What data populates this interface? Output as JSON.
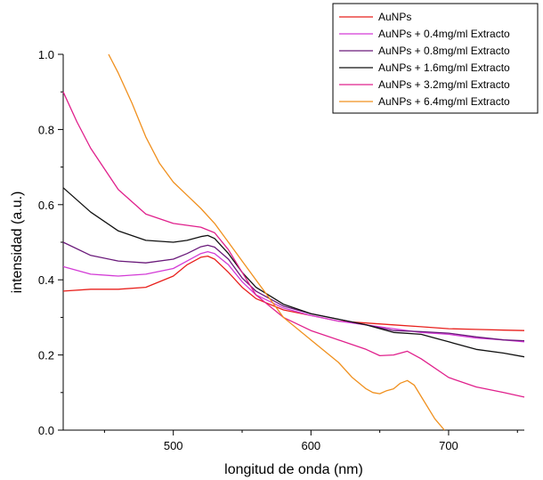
{
  "chart_data": {
    "type": "line",
    "title": "",
    "xlabel": "longitud de onda (nm)",
    "ylabel": "intensidad (a.u.)",
    "xlim": [
      420,
      755
    ],
    "ylim": [
      0.0,
      1.0
    ],
    "x_ticks": [
      500,
      600,
      700
    ],
    "x_tick_labels": [
      "500",
      "600",
      "700"
    ],
    "y_ticks": [
      0.0,
      0.2,
      0.4,
      0.6,
      0.8,
      1.0
    ],
    "y_tick_labels": [
      "0.0",
      "0.2",
      "0.4",
      "0.6",
      "0.8",
      "1.0"
    ],
    "grid": false,
    "legend_position": "top-right",
    "series": [
      {
        "name": "AuNPs",
        "color": "#e8201c",
        "x": [
          420,
          440,
          460,
          480,
          500,
          510,
          520,
          525,
          530,
          540,
          550,
          560,
          580,
          600,
          620,
          640,
          660,
          680,
          700,
          720,
          740,
          755
        ],
        "y": [
          0.37,
          0.375,
          0.375,
          0.38,
          0.41,
          0.44,
          0.46,
          0.463,
          0.455,
          0.42,
          0.38,
          0.35,
          0.32,
          0.305,
          0.29,
          0.285,
          0.28,
          0.275,
          0.27,
          0.268,
          0.266,
          0.265
        ]
      },
      {
        "name": "AuNPs + 0.4mg/ml Extracto",
        "color": "#d33bd6",
        "x": [
          420,
          440,
          460,
          480,
          500,
          510,
          520,
          525,
          530,
          540,
          550,
          560,
          580,
          600,
          620,
          640,
          660,
          680,
          700,
          720,
          740,
          755
        ],
        "y": [
          0.435,
          0.415,
          0.41,
          0.415,
          0.43,
          0.45,
          0.47,
          0.475,
          0.47,
          0.44,
          0.395,
          0.36,
          0.325,
          0.305,
          0.29,
          0.28,
          0.27,
          0.26,
          0.255,
          0.245,
          0.24,
          0.235
        ]
      },
      {
        "name": "AuNPs + 0.8mg/ml Extracto",
        "color": "#6a1a7a",
        "x": [
          420,
          440,
          460,
          480,
          500,
          510,
          520,
          525,
          530,
          540,
          550,
          560,
          580,
          600,
          620,
          640,
          660,
          680,
          700,
          720,
          740,
          755
        ],
        "y": [
          0.5,
          0.465,
          0.45,
          0.445,
          0.455,
          0.47,
          0.488,
          0.492,
          0.487,
          0.455,
          0.405,
          0.37,
          0.33,
          0.31,
          0.295,
          0.28,
          0.265,
          0.262,
          0.258,
          0.248,
          0.24,
          0.238
        ]
      },
      {
        "name": "AuNPs + 1.6mg/ml Extracto",
        "color": "#111111",
        "x": [
          420,
          440,
          460,
          480,
          500,
          510,
          520,
          525,
          530,
          540,
          550,
          560,
          580,
          600,
          620,
          640,
          660,
          680,
          700,
          720,
          740,
          755
        ],
        "y": [
          0.645,
          0.58,
          0.53,
          0.505,
          0.5,
          0.505,
          0.515,
          0.518,
          0.51,
          0.47,
          0.42,
          0.38,
          0.335,
          0.31,
          0.295,
          0.28,
          0.26,
          0.255,
          0.235,
          0.215,
          0.205,
          0.195
        ]
      },
      {
        "name": "AuNPs + 3.2mg/ml Extracto",
        "color": "#e0208c",
        "x": [
          420,
          430,
          440,
          460,
          480,
          500,
          520,
          530,
          540,
          550,
          560,
          580,
          600,
          620,
          640,
          650,
          660,
          670,
          680,
          700,
          720,
          740,
          755
        ],
        "y": [
          0.9,
          0.82,
          0.75,
          0.64,
          0.575,
          0.55,
          0.54,
          0.525,
          0.48,
          0.42,
          0.36,
          0.3,
          0.265,
          0.24,
          0.215,
          0.198,
          0.2,
          0.21,
          0.19,
          0.14,
          0.115,
          0.1,
          0.088
        ]
      },
      {
        "name": "AuNPs + 6.4mg/ml Extracto",
        "color": "#f0901e",
        "x": [
          453,
          460,
          470,
          480,
          490,
          500,
          510,
          520,
          530,
          540,
          550,
          560,
          570,
          580,
          600,
          620,
          630,
          640,
          645,
          650,
          655,
          660,
          665,
          670,
          675,
          680,
          690,
          697
        ],
        "y": [
          1.0,
          0.95,
          0.87,
          0.78,
          0.71,
          0.66,
          0.625,
          0.59,
          0.55,
          0.5,
          0.45,
          0.4,
          0.35,
          0.3,
          0.24,
          0.18,
          0.14,
          0.11,
          0.1,
          0.097,
          0.105,
          0.11,
          0.125,
          0.132,
          0.12,
          0.09,
          0.03,
          0.0
        ]
      }
    ]
  }
}
